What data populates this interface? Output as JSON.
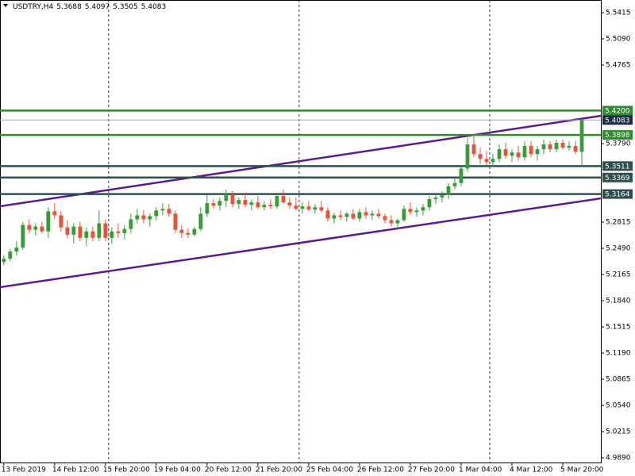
{
  "chart_data": {
    "type": "candlestick",
    "title": "USDTRY,H4",
    "bull_color": "#3a9a3a",
    "bear_color": "#e8533a",
    "xlim": [
      -0.6,
      94.0
    ],
    "ylim": [
      4.9831,
      5.5573
    ],
    "yticks": [
      {
        "value": 5.5415,
        "label": "5.5415"
      },
      {
        "value": 5.509,
        "label": "5.5090"
      },
      {
        "value": 5.4765,
        "label": "5.4765"
      },
      {
        "value": 5.379,
        "label": "5.3790"
      },
      {
        "value": 5.2815,
        "label": "5.2815"
      },
      {
        "value": 5.249,
        "label": "5.2490"
      },
      {
        "value": 5.2165,
        "label": "5.2165"
      },
      {
        "value": 5.184,
        "label": "5.1840"
      },
      {
        "value": 5.1515,
        "label": "5.1515"
      },
      {
        "value": 5.119,
        "label": "5.1190"
      },
      {
        "value": 5.0865,
        "label": "5.0865"
      },
      {
        "value": 5.054,
        "label": "5.0540"
      },
      {
        "value": 5.0215,
        "label": "5.0215"
      },
      {
        "value": 4.989,
        "label": "4.9890"
      }
    ],
    "xticks": [
      {
        "value": 0,
        "label": "13 Feb 2019"
      },
      {
        "value": 8,
        "label": "14 Feb 12:00"
      },
      {
        "value": 16,
        "label": "15 Feb 20:00"
      },
      {
        "value": 24,
        "label": "19 Feb 04:00"
      },
      {
        "value": 32,
        "label": "20 Feb 12:00"
      },
      {
        "value": 40,
        "label": "21 Feb 20:00"
      },
      {
        "value": 48,
        "label": "25 Feb 04:00"
      },
      {
        "value": 56,
        "label": "26 Feb 12:00"
      },
      {
        "value": 64,
        "label": "27 Feb 20:00"
      },
      {
        "value": 72,
        "label": "1 Mar 04:00"
      },
      {
        "value": 80,
        "label": "4 Mar 12:00"
      },
      {
        "value": 88,
        "label": "5 Mar 20:00"
      }
    ],
    "separators": [
      16.5,
      46.5,
      76.5
    ],
    "levels": [
      {
        "value": 5.42,
        "label": "5.4200",
        "color": "#2e8b2e"
      },
      {
        "value": 5.3898,
        "color": "#2e8b2e"
      },
      {
        "value": 5.3511,
        "color": "#2f4f4f"
      },
      {
        "value": 5.3369,
        "color": "#2f4f4f"
      },
      {
        "value": 5.3164,
        "color": "#2f4f4f"
      }
    ],
    "current_price_color": "#1f2a44",
    "trendlines": [
      {
        "color": "#5b1a8f",
        "x": [
          -0.6,
          94.0
        ],
        "y": [
          5.3012,
          5.4135
        ]
      },
      {
        "color": "#5b1a8f",
        "x": [
          -0.6,
          94.0
        ],
        "y": [
          5.2007,
          5.311
        ]
      }
    ],
    "ohlc": [
      [
        5.232,
        5.24,
        5.228,
        5.236
      ],
      [
        5.236,
        5.248,
        5.233,
        5.245
      ],
      [
        5.245,
        5.258,
        5.24,
        5.25
      ],
      [
        5.25,
        5.282,
        5.247,
        5.278
      ],
      [
        5.278,
        5.285,
        5.268,
        5.272
      ],
      [
        5.272,
        5.28,
        5.265,
        5.276
      ],
      [
        5.276,
        5.282,
        5.268,
        5.27
      ],
      [
        5.27,
        5.3,
        5.262,
        5.295
      ],
      [
        5.295,
        5.305,
        5.285,
        5.29
      ],
      [
        5.29,
        5.295,
        5.27,
        5.275
      ],
      [
        5.275,
        5.284,
        5.262,
        5.266
      ],
      [
        5.266,
        5.28,
        5.255,
        5.276
      ],
      [
        5.276,
        5.282,
        5.258,
        5.262
      ],
      [
        5.262,
        5.275,
        5.252,
        5.27
      ],
      [
        5.27,
        5.276,
        5.258,
        5.262
      ],
      [
        5.262,
        5.296,
        5.258,
        5.28
      ],
      [
        5.28,
        5.285,
        5.258,
        5.262
      ],
      [
        5.262,
        5.275,
        5.255,
        5.27
      ],
      [
        5.27,
        5.28,
        5.262,
        5.268
      ],
      [
        5.268,
        5.278,
        5.26,
        5.273
      ],
      [
        5.273,
        5.292,
        5.268,
        5.285
      ],
      [
        5.285,
        5.298,
        5.28,
        5.29
      ],
      [
        5.29,
        5.296,
        5.28,
        5.285
      ],
      [
        5.285,
        5.292,
        5.276,
        5.289
      ],
      [
        5.289,
        5.3,
        5.284,
        5.296
      ],
      [
        5.296,
        5.305,
        5.29,
        5.298
      ],
      [
        5.298,
        5.304,
        5.288,
        5.292
      ],
      [
        5.292,
        5.296,
        5.268,
        5.272
      ],
      [
        5.272,
        5.278,
        5.262,
        5.268
      ],
      [
        5.268,
        5.274,
        5.262,
        5.266
      ],
      [
        5.266,
        5.276,
        5.264,
        5.273
      ],
      [
        5.273,
        5.3,
        5.27,
        5.292
      ],
      [
        5.292,
        5.315,
        5.288,
        5.305
      ],
      [
        5.305,
        5.31,
        5.298,
        5.302
      ],
      [
        5.302,
        5.312,
        5.296,
        5.308
      ],
      [
        5.308,
        5.322,
        5.3,
        5.316
      ],
      [
        5.316,
        5.32,
        5.3,
        5.304
      ],
      [
        5.304,
        5.312,
        5.298,
        5.309
      ],
      [
        5.309,
        5.318,
        5.3,
        5.303
      ],
      [
        5.303,
        5.31,
        5.296,
        5.306
      ],
      [
        5.306,
        5.314,
        5.298,
        5.3
      ],
      [
        5.3,
        5.308,
        5.296,
        5.303
      ],
      [
        5.303,
        5.31,
        5.298,
        5.301
      ],
      [
        5.301,
        5.318,
        5.298,
        5.314
      ],
      [
        5.314,
        5.322,
        5.304,
        5.306
      ],
      [
        5.306,
        5.312,
        5.298,
        5.302
      ],
      [
        5.302,
        5.312,
        5.296,
        5.298
      ],
      [
        5.298,
        5.306,
        5.292,
        5.301
      ],
      [
        5.301,
        5.308,
        5.295,
        5.297
      ],
      [
        5.297,
        5.304,
        5.292,
        5.3
      ],
      [
        5.3,
        5.308,
        5.294,
        5.296
      ],
      [
        5.296,
        5.3,
        5.282,
        5.286
      ],
      [
        5.286,
        5.293,
        5.28,
        5.29
      ],
      [
        5.29,
        5.296,
        5.284,
        5.288
      ],
      [
        5.288,
        5.294,
        5.282,
        5.292
      ],
      [
        5.292,
        5.298,
        5.284,
        5.286
      ],
      [
        5.286,
        5.298,
        5.282,
        5.294
      ],
      [
        5.294,
        5.3,
        5.286,
        5.29
      ],
      [
        5.29,
        5.296,
        5.284,
        5.292
      ],
      [
        5.292,
        5.298,
        5.286,
        5.289
      ],
      [
        5.289,
        5.292,
        5.28,
        5.284
      ],
      [
        5.284,
        5.29,
        5.276,
        5.28
      ],
      [
        5.28,
        5.286,
        5.272,
        5.284
      ],
      [
        5.284,
        5.302,
        5.282,
        5.298
      ],
      [
        5.298,
        5.306,
        5.29,
        5.294
      ],
      [
        5.294,
        5.3,
        5.288,
        5.296
      ],
      [
        5.296,
        5.304,
        5.29,
        5.3
      ],
      [
        5.3,
        5.314,
        5.296,
        5.31
      ],
      [
        5.31,
        5.318,
        5.304,
        5.312
      ],
      [
        5.312,
        5.32,
        5.306,
        5.315
      ],
      [
        5.315,
        5.33,
        5.31,
        5.326
      ],
      [
        5.326,
        5.336,
        5.322,
        5.33
      ],
      [
        5.33,
        5.352,
        5.326,
        5.348
      ],
      [
        5.348,
        5.386,
        5.344,
        5.378
      ],
      [
        5.378,
        5.388,
        5.362,
        5.366
      ],
      [
        5.366,
        5.374,
        5.354,
        5.36
      ],
      [
        5.36,
        5.37,
        5.352,
        5.356
      ],
      [
        5.356,
        5.366,
        5.35,
        5.36
      ],
      [
        5.36,
        5.378,
        5.356,
        5.372
      ],
      [
        5.372,
        5.38,
        5.36,
        5.364
      ],
      [
        5.364,
        5.372,
        5.356,
        5.368
      ],
      [
        5.368,
        5.376,
        5.358,
        5.362
      ],
      [
        5.362,
        5.382,
        5.358,
        5.376
      ],
      [
        5.376,
        5.382,
        5.362,
        5.366
      ],
      [
        5.366,
        5.376,
        5.358,
        5.372
      ],
      [
        5.372,
        5.384,
        5.366,
        5.378
      ],
      [
        5.378,
        5.382,
        5.368,
        5.372
      ],
      [
        5.372,
        5.384,
        5.368,
        5.38
      ],
      [
        5.38,
        5.384,
        5.372,
        5.374
      ],
      [
        5.374,
        5.382,
        5.37,
        5.376
      ],
      [
        5.376,
        5.382,
        5.366,
        5.369
      ],
      [
        5.3688,
        5.4097,
        5.3505,
        5.4083
      ]
    ]
  }
}
